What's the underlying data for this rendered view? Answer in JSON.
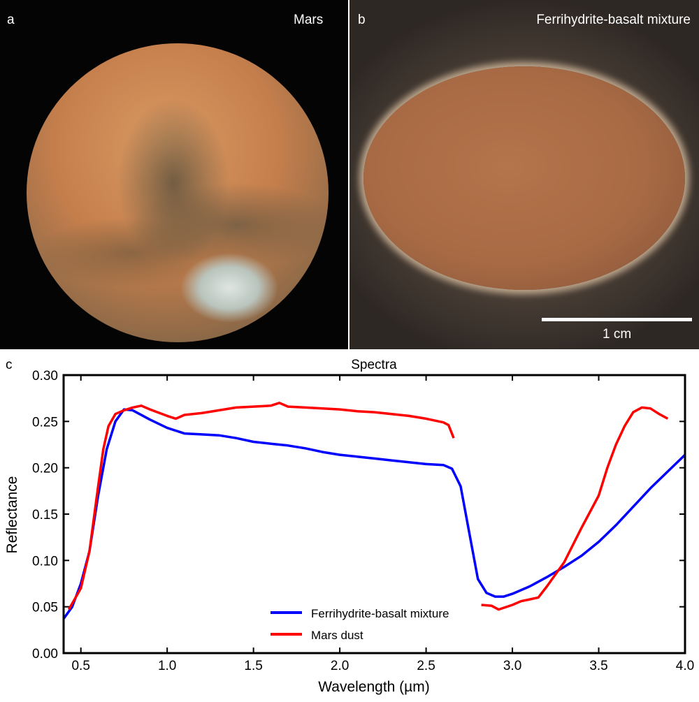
{
  "panel_a": {
    "letter": "a",
    "title": "Mars"
  },
  "panel_b": {
    "letter": "b",
    "title": "Ferrihydrite-basalt mixture",
    "scale_label": "1 cm"
  },
  "panel_c": {
    "letter": "c"
  },
  "chart_data": {
    "type": "line",
    "title": "Spectra",
    "xlabel": "Wavelength (µm)",
    "ylabel": "Reflectance",
    "xlim": [
      0.4,
      4.0
    ],
    "ylim": [
      0.0,
      0.3
    ],
    "xticks": [
      "0.5",
      "1.0",
      "1.5",
      "2.0",
      "2.5",
      "3.0",
      "3.5",
      "4.0"
    ],
    "xtick_values": [
      0.5,
      1.0,
      1.5,
      2.0,
      2.5,
      3.0,
      3.5,
      4.0
    ],
    "yticks": [
      "0.00",
      "0.05",
      "0.10",
      "0.15",
      "0.20",
      "0.25",
      "0.30"
    ],
    "ytick_values": [
      0,
      0.05,
      0.1,
      0.15,
      0.2,
      0.25,
      0.3
    ],
    "grid": false,
    "legend_position": "bottom-center",
    "series": [
      {
        "name": "Ferrihydrite-basalt mixture",
        "color": "#0000ff",
        "segments": [
          [
            [
              0.4,
              0.037
            ],
            [
              0.45,
              0.05
            ],
            [
              0.5,
              0.075
            ],
            [
              0.55,
              0.11
            ],
            [
              0.6,
              0.17
            ],
            [
              0.65,
              0.22
            ],
            [
              0.7,
              0.25
            ],
            [
              0.75,
              0.263
            ],
            [
              0.8,
              0.262
            ],
            [
              0.9,
              0.252
            ],
            [
              1.0,
              0.243
            ],
            [
              1.1,
              0.237
            ],
            [
              1.2,
              0.236
            ],
            [
              1.3,
              0.235
            ],
            [
              1.4,
              0.232
            ],
            [
              1.5,
              0.228
            ],
            [
              1.6,
              0.226
            ],
            [
              1.7,
              0.224
            ],
            [
              1.8,
              0.221
            ],
            [
              1.9,
              0.217
            ],
            [
              2.0,
              0.214
            ],
            [
              2.1,
              0.212
            ],
            [
              2.2,
              0.21
            ],
            [
              2.3,
              0.208
            ],
            [
              2.4,
              0.206
            ],
            [
              2.5,
              0.204
            ],
            [
              2.6,
              0.203
            ],
            [
              2.65,
              0.199
            ],
            [
              2.7,
              0.18
            ],
            [
              2.75,
              0.13
            ],
            [
              2.8,
              0.08
            ],
            [
              2.85,
              0.065
            ],
            [
              2.9,
              0.061
            ],
            [
              2.95,
              0.061
            ],
            [
              3.0,
              0.064
            ],
            [
              3.1,
              0.072
            ],
            [
              3.2,
              0.082
            ],
            [
              3.3,
              0.093
            ],
            [
              3.4,
              0.105
            ],
            [
              3.5,
              0.12
            ],
            [
              3.6,
              0.138
            ],
            [
              3.7,
              0.158
            ],
            [
              3.8,
              0.178
            ],
            [
              3.9,
              0.196
            ],
            [
              4.0,
              0.214
            ]
          ]
        ]
      },
      {
        "name": "Mars dust",
        "color": "#ff0000",
        "segments": [
          [
            [
              0.43,
              0.047
            ],
            [
              0.5,
              0.07
            ],
            [
              0.55,
              0.11
            ],
            [
              0.6,
              0.18
            ],
            [
              0.63,
              0.22
            ],
            [
              0.66,
              0.245
            ],
            [
              0.7,
              0.258
            ],
            [
              0.75,
              0.262
            ],
            [
              0.8,
              0.265
            ],
            [
              0.85,
              0.267
            ],
            [
              0.9,
              0.263
            ],
            [
              1.0,
              0.256
            ],
            [
              1.05,
              0.253
            ],
            [
              1.1,
              0.257
            ],
            [
              1.2,
              0.259
            ],
            [
              1.3,
              0.262
            ],
            [
              1.4,
              0.265
            ],
            [
              1.5,
              0.266
            ],
            [
              1.6,
              0.267
            ],
            [
              1.65,
              0.27
            ],
            [
              1.7,
              0.266
            ],
            [
              1.8,
              0.265
            ],
            [
              1.9,
              0.264
            ],
            [
              2.0,
              0.263
            ],
            [
              2.1,
              0.261
            ],
            [
              2.2,
              0.26
            ],
            [
              2.3,
              0.258
            ],
            [
              2.4,
              0.256
            ],
            [
              2.5,
              0.253
            ],
            [
              2.6,
              0.249
            ],
            [
              2.63,
              0.246
            ],
            [
              2.66,
              0.232
            ]
          ],
          [
            [
              2.82,
              0.052
            ],
            [
              2.88,
              0.051
            ],
            [
              2.92,
              0.047
            ],
            [
              3.0,
              0.052
            ],
            [
              3.05,
              0.056
            ],
            [
              3.1,
              0.058
            ],
            [
              3.15,
              0.06
            ],
            [
              3.2,
              0.072
            ],
            [
              3.3,
              0.098
            ],
            [
              3.4,
              0.135
            ],
            [
              3.5,
              0.17
            ],
            [
              3.55,
              0.2
            ],
            [
              3.6,
              0.225
            ],
            [
              3.65,
              0.245
            ],
            [
              3.7,
              0.26
            ],
            [
              3.75,
              0.265
            ],
            [
              3.8,
              0.264
            ],
            [
              3.85,
              0.258
            ],
            [
              3.9,
              0.253
            ]
          ]
        ]
      }
    ]
  }
}
